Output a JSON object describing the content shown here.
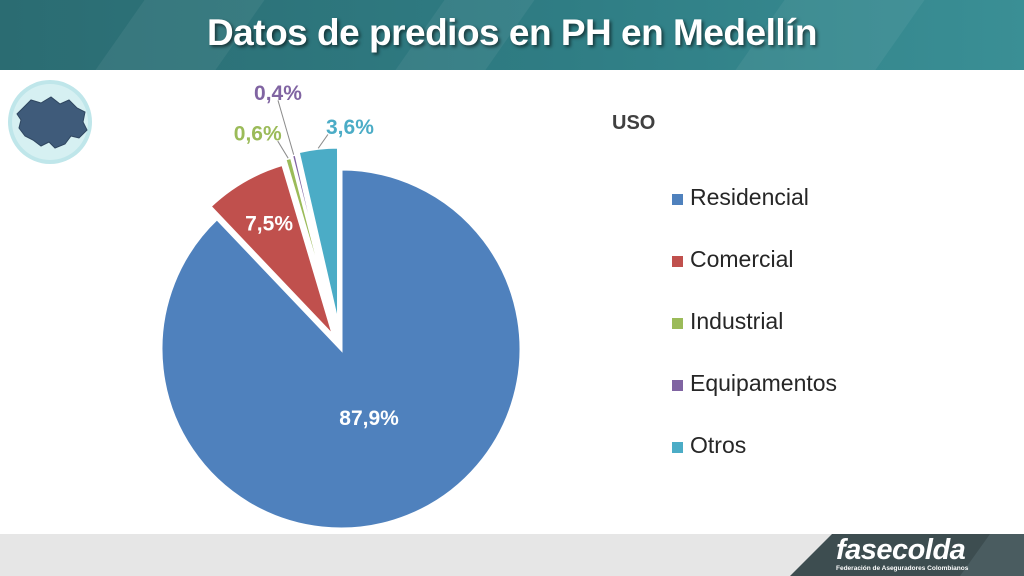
{
  "slide": {
    "title": "Datos de predios en PH en Medellín"
  },
  "chart_data": {
    "type": "pie",
    "title": "USO",
    "categories": [
      "Residencial",
      "Comercial",
      "Industrial",
      "Equipamentos",
      "Otros"
    ],
    "values": [
      87.9,
      7.5,
      0.6,
      0.4,
      3.6
    ],
    "unit": "%",
    "exploded": true,
    "labels": [
      "87,9%",
      "7,5%",
      "0,6%",
      "0,4%",
      "3,6%"
    ],
    "colors": [
      "#4f81bd",
      "#c0504d",
      "#9bbb59",
      "#8064a2",
      "#4bacc6"
    ],
    "label_colors": [
      "#ffffff",
      "#ffffff",
      "#9bbb59",
      "#8064a2",
      "#4bacc6"
    ],
    "legend_position": "right"
  },
  "footer": {
    "logo_text": "fasecolda",
    "logo_subtitle": "Federación de Aseguradores Colombianos"
  },
  "colors": {
    "header": "#2f7d84",
    "footer": "#e6e6e6",
    "logo_band": "#3d4d50",
    "map_fill": "#3f5b7a",
    "map_ring": "#bfe6ea"
  },
  "icons": {
    "map": "medellin-map-icon",
    "logo": "fasecolda-logo"
  }
}
